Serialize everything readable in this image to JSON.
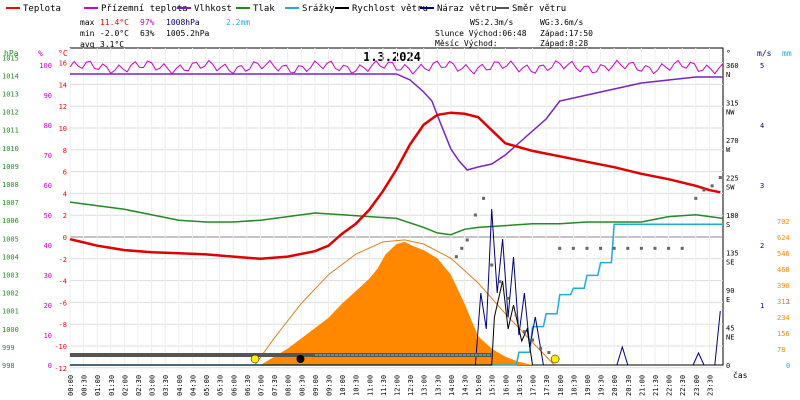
{
  "chart_data": {
    "type": "line",
    "title": "1.3.2024",
    "xlabel": "čas",
    "legend": [
      {
        "key": "temp",
        "label": "Teplota",
        "color": "#ff0000"
      },
      {
        "key": "feels",
        "label": "Přízemní teplota",
        "color": "#cc00cc"
      },
      {
        "key": "hum",
        "label": "Vlhkost",
        "color": "#7a22c8"
      },
      {
        "key": "press",
        "label": "Tlak",
        "color": "#228b22"
      },
      {
        "key": "rain",
        "label": "Srážky",
        "color": "#22aadd"
      },
      {
        "key": "wind",
        "label": "Rychlost větru",
        "color": "#000000"
      },
      {
        "key": "gust",
        "label": "Náraz větru",
        "color": "#000080"
      },
      {
        "key": "dir",
        "label": "Směr větru",
        "color": "#555555"
      }
    ],
    "stats": {
      "max_label": "max",
      "max_temp": "11.4°C",
      "max_hum": "97%",
      "max_press": "1008hPa",
      "max_rain": "2.2mm",
      "min_label": "min",
      "min_temp": "-2.0°C",
      "min_hum": "63%",
      "min_press": "1005.2hPa",
      "avg_label": "avg",
      "avg_temp": "3.1°C",
      "ws": "WS:2.3m/s",
      "wg": "WG:3.6m/s",
      "sun_rise": "Slunce Východ:06:48",
      "sun_set": "Západ:17:50",
      "moon_rise": "Měsíc  Východ:",
      "moon_set": "Západ:8:28"
    },
    "axes": {
      "hpa_label": "hPa",
      "pct_label": "%",
      "degc_label": "°C",
      "deg_label": "°",
      "ms_label": "m/s",
      "mm_label": "mm",
      "hpa_ticks": [
        "1015",
        "1014",
        "1013",
        "1012",
        "1011",
        "1010",
        "1009",
        "1008",
        "1007",
        "1006",
        "1005",
        "1004",
        "1003",
        "1002",
        "1001",
        "1000",
        "999",
        "998"
      ],
      "pct_ticks": [
        "100",
        "90",
        "80",
        "70",
        "60",
        "50",
        "40",
        "30",
        "20",
        "10",
        "0"
      ],
      "temp_ticks": [
        "16",
        "14",
        "12",
        "10",
        "8",
        "6",
        "4",
        "2",
        "0",
        "-2",
        "-4",
        "-6",
        "-8",
        "-10",
        "-12"
      ],
      "dir_ticks": [
        "360",
        "N",
        "315",
        "NW",
        "270",
        "W",
        "225",
        "SW",
        "180",
        "S",
        "135",
        "SE",
        "90",
        "E",
        "45",
        "NE",
        "0"
      ],
      "ms_ticks": [
        "5",
        "4",
        "3",
        "2",
        "1"
      ],
      "mm_ticks": [
        "1",
        "0"
      ],
      "rad_ticks": [
        "702",
        "624",
        "546",
        "468",
        "390",
        "312",
        "234",
        "156",
        "78"
      ],
      "x_ticks": [
        "00:00",
        "00:30",
        "01:00",
        "01:30",
        "02:00",
        "02:30",
        "03:00",
        "03:30",
        "04:00",
        "04:30",
        "05:00",
        "05:30",
        "06:00",
        "06:30",
        "07:00",
        "07:30",
        "08:00",
        "08:30",
        "09:00",
        "09:30",
        "10:00",
        "10:30",
        "11:00",
        "11:30",
        "12:00",
        "12:30",
        "13:00",
        "13:30",
        "14:00",
        "14:30",
        "15:00",
        "15:30",
        "16:00",
        "16:30",
        "17:00",
        "17:30",
        "18:00",
        "18:30",
        "19:00",
        "19:30",
        "20:00",
        "20:30",
        "21:00",
        "21:30",
        "22:00",
        "22:30",
        "23:00",
        "23:30"
      ]
    },
    "series": {
      "temp": {
        "x": [
          0,
          0.5,
          1,
          1.5,
          2,
          3,
          4,
          5,
          6,
          7,
          8,
          9,
          9.5,
          10,
          10.5,
          11,
          11.5,
          12,
          12.5,
          13,
          13.5,
          14,
          14.5,
          15,
          15.5,
          16,
          17,
          18,
          19,
          20,
          21,
          22,
          23,
          23.5,
          23.9
        ],
        "y": [
          -0.2,
          -0.5,
          -0.8,
          -1.0,
          -1.2,
          -1.4,
          -1.5,
          -1.6,
          -1.8,
          -2.0,
          -1.8,
          -1.3,
          -0.8,
          0.3,
          1.2,
          2.5,
          4.2,
          6.2,
          8.5,
          10.3,
          11.2,
          11.4,
          11.3,
          11.0,
          9.8,
          8.6,
          7.9,
          7.4,
          6.9,
          6.4,
          5.8,
          5.3,
          4.7,
          4.3,
          4.1
        ]
      },
      "feels": {
        "x": [
          0,
          24
        ],
        "y": [
          15.6,
          15.6
        ],
        "noise": 0.4
      },
      "hum": {
        "x": [
          0,
          6,
          12,
          12.5,
          13,
          13.3,
          13.6,
          14,
          14.3,
          14.6,
          15,
          15.5,
          16,
          16.5,
          17,
          17.5,
          18,
          19,
          20,
          21,
          22,
          23,
          24
        ],
        "y": [
          97,
          97,
          97,
          95,
          91,
          88,
          81,
          72,
          68,
          65,
          66,
          67,
          70,
          74,
          78,
          82,
          88,
          90,
          92,
          94,
          95,
          96,
          96
        ]
      },
      "press": {
        "x": [
          0,
          2,
          4,
          5,
          6,
          7,
          8,
          9,
          10,
          11,
          12,
          13,
          13.5,
          14,
          14.5,
          15,
          16,
          17,
          18,
          19,
          20,
          21,
          22,
          23,
          24
        ],
        "y": [
          1007.0,
          1006.6,
          1006.0,
          1005.9,
          1005.9,
          1006.0,
          1006.2,
          1006.4,
          1006.3,
          1006.2,
          1006.1,
          1005.6,
          1005.3,
          1005.2,
          1005.5,
          1005.6,
          1005.7,
          1005.8,
          1005.8,
          1005.9,
          1005.9,
          1005.9,
          1006.2,
          1006.3,
          1006.1
        ]
      },
      "rain": {
        "x": [
          0,
          15.7,
          16.4,
          16.5,
          16.9,
          17.0,
          17.4,
          17.5,
          17.9,
          18.0,
          18.4,
          18.5,
          18.9,
          19.0,
          19.4,
          19.5,
          19.9,
          20.0,
          24
        ],
        "y": [
          0,
          0,
          0,
          0.2,
          0.2,
          0.6,
          0.6,
          0.8,
          0.8,
          1.1,
          1.1,
          1.2,
          1.2,
          1.4,
          1.4,
          1.6,
          1.6,
          2.2,
          2.2
        ]
      },
      "wind": {
        "x": [
          0,
          15.5,
          15.6,
          15.9,
          16.1,
          16.3,
          16.6,
          16.8,
          17.0,
          24
        ],
        "y": [
          0,
          0,
          0.8,
          1.4,
          0.6,
          1.0,
          0.4,
          0.6,
          0,
          0
        ]
      },
      "gust": {
        "x": [
          0,
          14.9,
          15.1,
          15.3,
          15.5,
          15.7,
          15.9,
          16.1,
          16.3,
          16.5,
          16.7,
          16.9,
          17.1,
          17.4,
          20.1,
          20.3,
          20.5,
          22.9,
          23.1,
          23.3,
          23.7,
          23.9
        ],
        "y": [
          0,
          0,
          1.2,
          0.6,
          2.6,
          1.2,
          2.1,
          0.8,
          1.8,
          0.5,
          1.2,
          0.3,
          0.8,
          0,
          0,
          0.3,
          0,
          0,
          0.2,
          0,
          0,
          0.9
        ]
      },
      "dir": {
        "x": [
          14.2,
          14.4,
          14.6,
          14.9,
          15.2,
          15.5,
          15.8,
          16.1,
          16.4,
          16.7,
          17.0,
          17.3,
          17.6,
          18.0,
          18.5,
          19,
          19.5,
          20,
          20.5,
          21,
          21.5,
          22,
          22.5,
          23,
          23.3,
          23.6,
          23.9
        ],
        "y": [
          130,
          140,
          150,
          180,
          200,
          120,
          100,
          80,
          60,
          40,
          30,
          20,
          15,
          140,
          140,
          140,
          140,
          140,
          140,
          140,
          140,
          140,
          140,
          200,
          210,
          215,
          225
        ]
      },
      "rad": {
        "x": [
          7,
          8,
          9,
          9.5,
          10,
          10.5,
          11,
          11.3,
          11.6,
          12,
          12.3,
          12.6,
          13,
          13.5,
          14,
          14.5,
          15,
          15.5,
          16,
          16.5,
          17
        ],
        "y": [
          0,
          80,
          180,
          230,
          300,
          360,
          420,
          470,
          540,
          590,
          600,
          580,
          560,
          520,
          440,
          300,
          140,
          80,
          40,
          15,
          0
        ]
      },
      "rad_theory": {
        "x": [
          6.8,
          7.5,
          8.5,
          9.5,
          10.5,
          11.5,
          12.3,
          13,
          14,
          15,
          16,
          17,
          17.8
        ],
        "y": [
          0,
          130,
          300,
          440,
          540,
          600,
          610,
          590,
          520,
          400,
          250,
          110,
          0
        ]
      }
    }
  }
}
